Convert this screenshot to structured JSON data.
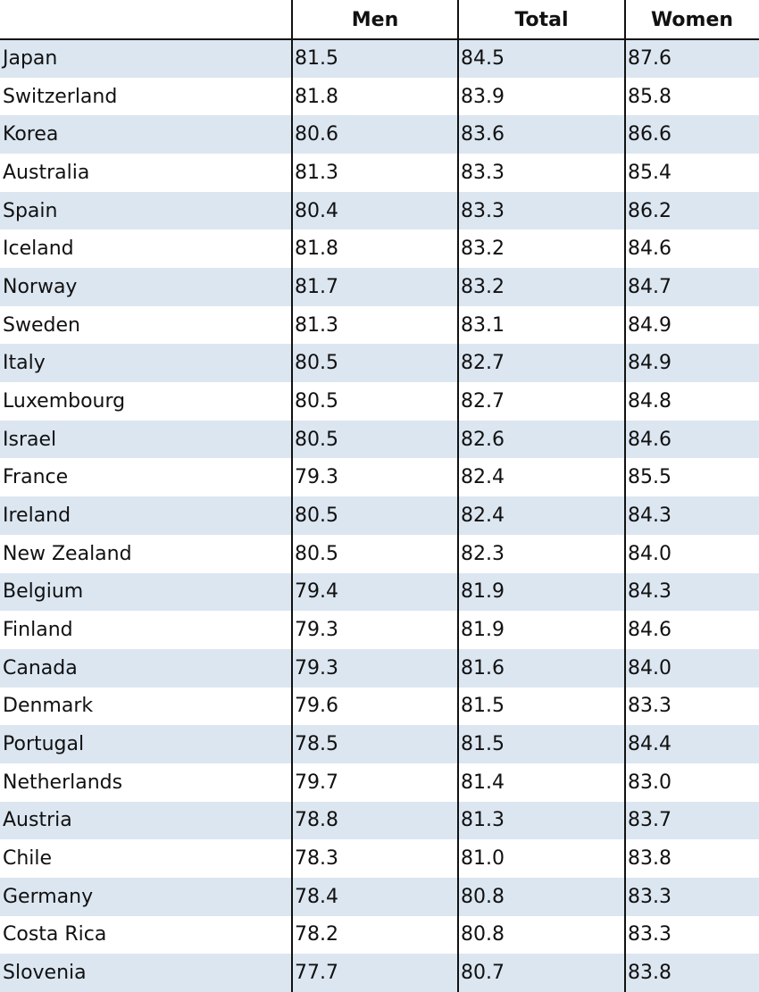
{
  "table": {
    "columns": [
      "Men",
      "Total",
      "Women"
    ],
    "rows": [
      [
        "Japan",
        "81.5",
        "84.5",
        "87.6"
      ],
      [
        "Switzerland",
        "81.8",
        "83.9",
        "85.8"
      ],
      [
        "Korea",
        "80.6",
        "83.6",
        "86.6"
      ],
      [
        "Australia",
        "81.3",
        "83.3",
        "85.4"
      ],
      [
        "Spain",
        "80.4",
        "83.3",
        "86.2"
      ],
      [
        "Iceland",
        "81.8",
        "83.2",
        "84.6"
      ],
      [
        "Norway",
        "81.7",
        "83.2",
        "84.7"
      ],
      [
        "Sweden",
        "81.3",
        "83.1",
        "84.9"
      ],
      [
        "Italy",
        "80.5",
        "82.7",
        "84.9"
      ],
      [
        "Luxembourg",
        "80.5",
        "82.7",
        "84.8"
      ],
      [
        "Israel",
        "80.5",
        "82.6",
        "84.6"
      ],
      [
        "France",
        "79.3",
        "82.4",
        "85.5"
      ],
      [
        "Ireland",
        "80.5",
        "82.4",
        "84.3"
      ],
      [
        "New Zealand",
        "80.5",
        "82.3",
        "84.0"
      ],
      [
        "Belgium",
        "79.4",
        "81.9",
        "84.3"
      ],
      [
        "Finland",
        "79.3",
        "81.9",
        "84.6"
      ],
      [
        "Canada",
        "79.3",
        "81.6",
        "84.0"
      ],
      [
        "Denmark",
        "79.6",
        "81.5",
        "83.3"
      ],
      [
        "Portugal",
        "78.5",
        "81.5",
        "84.4"
      ],
      [
        "Netherlands",
        "79.7",
        "81.4",
        "83.0"
      ],
      [
        "Austria",
        "78.8",
        "81.3",
        "83.7"
      ],
      [
        "Chile",
        "78.3",
        "81.0",
        "83.8"
      ],
      [
        "Germany",
        "78.4",
        "80.8",
        "83.3"
      ],
      [
        "Costa Rica",
        "78.2",
        "80.8",
        "83.3"
      ],
      [
        "Slovenia",
        "77.7",
        "80.7",
        "83.8"
      ]
    ]
  }
}
